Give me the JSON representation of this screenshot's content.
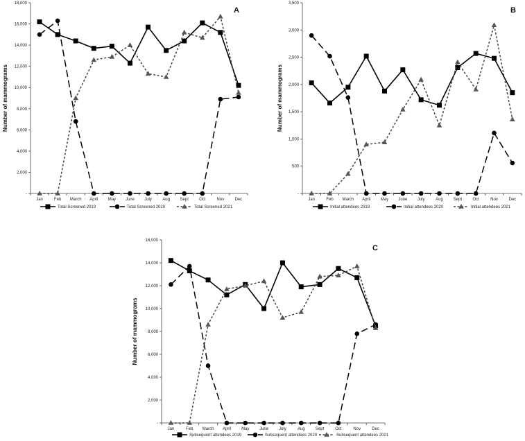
{
  "chart_data": [
    {
      "type": "line",
      "panel_label": "A",
      "categories": [
        "Jan",
        "Feb",
        "March",
        "April",
        "May",
        "June",
        "July",
        "Aug",
        "Sept",
        "Oct",
        "Nov",
        "Dec"
      ],
      "ylabel": "Number of mammograms",
      "ylim": [
        0,
        18000
      ],
      "yticks": [
        0,
        2000,
        4000,
        6000,
        8000,
        10000,
        12000,
        14000,
        16000,
        18000
      ],
      "ytick_labels": [
        "-",
        "2,000",
        "4,000",
        "6,000",
        "8,000",
        "10,000",
        "12,000",
        "14,000",
        "16,000",
        "18,000"
      ],
      "legend_position": "bottom",
      "series": [
        {
          "name": "Total Screened 2019",
          "marker": "square",
          "dash": "solid",
          "values": [
            16200,
            15000,
            14400,
            13700,
            13900,
            12300,
            15700,
            13500,
            14400,
            16100,
            15200,
            10200
          ]
        },
        {
          "name": "Total Screened 2020",
          "marker": "circle",
          "dash": "long",
          "values": [
            15000,
            16300,
            6800,
            0,
            0,
            0,
            0,
            0,
            0,
            0,
            8900,
            9100
          ]
        },
        {
          "name": "Total Screened 2021",
          "marker": "triangle",
          "dash": "short",
          "values": [
            0,
            0,
            9000,
            12600,
            12900,
            14000,
            11300,
            11000,
            15200,
            14700,
            16700,
            9500
          ]
        }
      ]
    },
    {
      "type": "line",
      "panel_label": "B",
      "categories": [
        "Jan",
        "Feb",
        "March",
        "April",
        "May",
        "June",
        "July",
        "Aug",
        "Sept",
        "Oct",
        "Nov",
        "Dec"
      ],
      "ylabel": "Number of mammograms",
      "ylim": [
        0,
        3500
      ],
      "yticks": [
        0,
        500,
        1000,
        1500,
        2000,
        2500,
        3000,
        3500
      ],
      "ytick_labels": [
        "-",
        "500",
        "1,000",
        "1,500",
        "2,000",
        "2,500",
        "3,000",
        "3,500"
      ],
      "legend_position": "bottom",
      "series": [
        {
          "name": "Initial attendees 2019",
          "marker": "square",
          "dash": "solid",
          "values": [
            2030,
            1660,
            1950,
            2520,
            1880,
            2270,
            1720,
            1620,
            2310,
            2570,
            2480,
            1850
          ]
        },
        {
          "name": "Initial attendees 2020",
          "marker": "circle",
          "dash": "long",
          "values": [
            2900,
            2520,
            1760,
            0,
            0,
            0,
            0,
            0,
            0,
            0,
            1110,
            560
          ]
        },
        {
          "name": "Initial attendees 2021",
          "marker": "triangle",
          "dash": "short",
          "values": [
            0,
            0,
            360,
            900,
            940,
            1540,
            2090,
            1250,
            2410,
            1910,
            3090,
            1360
          ]
        }
      ]
    },
    {
      "type": "line",
      "panel_label": "C",
      "categories": [
        "Jan",
        "Feb",
        "March",
        "April",
        "May",
        "June",
        "July",
        "Aug",
        "Sept",
        "Oct",
        "Nov",
        "Dec"
      ],
      "ylabel": "Number of mammograms",
      "ylim": [
        0,
        16000
      ],
      "yticks": [
        0,
        2000,
        4000,
        6000,
        8000,
        10000,
        12000,
        14000,
        16000
      ],
      "ytick_labels": [
        "-",
        "2,000",
        "4,000",
        "6,000",
        "8,000",
        "10,000",
        "12,000",
        "14,000",
        "16,000"
      ],
      "legend_position": "bottom",
      "series": [
        {
          "name": "Subsequent attendees 2019",
          "marker": "square",
          "dash": "solid",
          "values": [
            14200,
            13300,
            12500,
            11200,
            12100,
            10000,
            14000,
            11900,
            12100,
            13500,
            12700,
            8500
          ]
        },
        {
          "name": "Subsequent attendees 2020",
          "marker": "circle",
          "dash": "long",
          "values": [
            12100,
            13700,
            5000,
            0,
            0,
            0,
            0,
            0,
            0,
            0,
            7800,
            8600
          ]
        },
        {
          "name": "Subsequent attendees 2021",
          "marker": "triangle",
          "dash": "short",
          "values": [
            0,
            0,
            8600,
            11700,
            12000,
            12400,
            9200,
            9700,
            12800,
            12900,
            13700,
            8300
          ]
        }
      ]
    }
  ]
}
